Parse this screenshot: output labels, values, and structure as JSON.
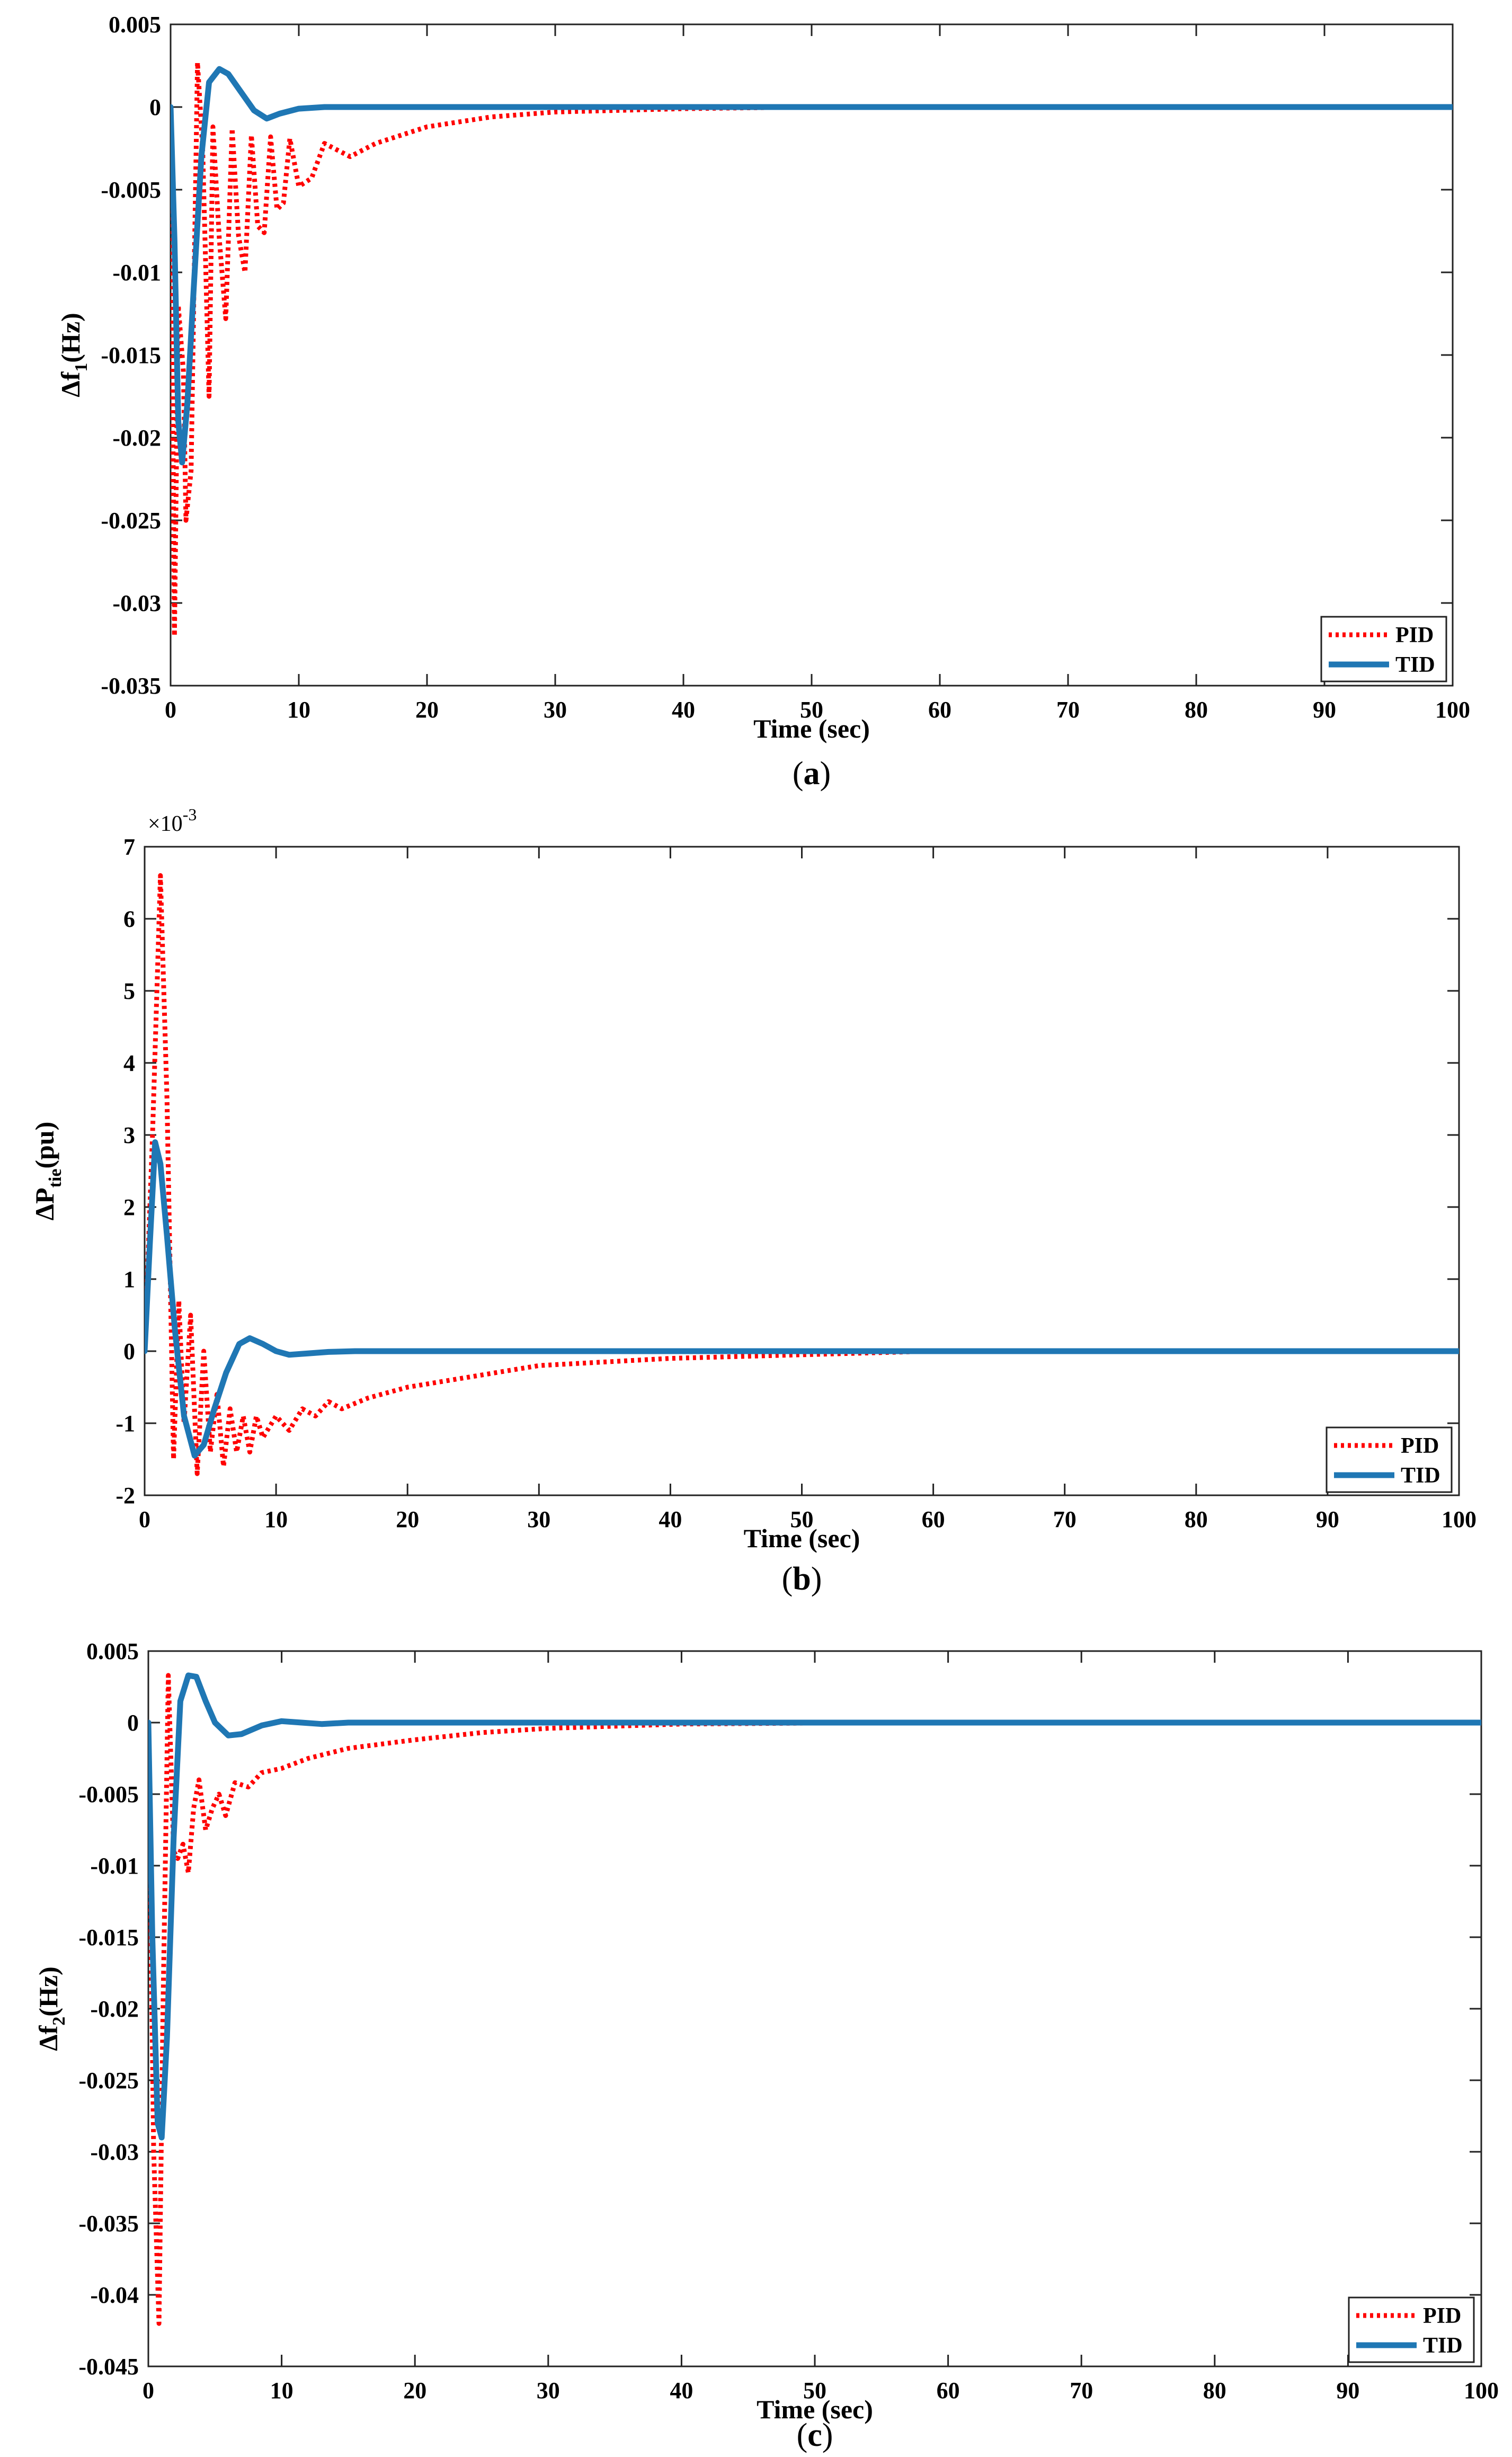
{
  "figure": {
    "captions": [
      "(a)",
      "(b)",
      "(c)"
    ]
  },
  "chart_data": [
    {
      "type": "line",
      "panel": "a",
      "caption": "(a)",
      "xlabel": "Time (sec)",
      "ylabel_main": "Δf",
      "ylabel_sub": "1",
      "ylabel_unit": "(Hz)",
      "xlim": [
        0,
        100
      ],
      "ylim": [
        -0.035,
        0.005
      ],
      "xticks": [
        0,
        10,
        20,
        30,
        40,
        50,
        60,
        70,
        80,
        90,
        100
      ],
      "xtick_labels": [
        "0",
        "10",
        "20",
        "30",
        "40",
        "50",
        "60",
        "70",
        "80",
        "90",
        "100"
      ],
      "yticks": [
        -0.035,
        -0.03,
        -0.025,
        -0.02,
        -0.015,
        -0.01,
        -0.005,
        0,
        0.005
      ],
      "ytick_labels": [
        "-0.035",
        "-0.03",
        "-0.025",
        "-0.02",
        "-0.015",
        "-0.01",
        "-0.005",
        "0",
        "0.005"
      ],
      "legend_position": "bottom-right",
      "series": [
        {
          "name": "PID",
          "color": "#ff0000",
          "style": "dotted",
          "x": [
            0,
            0.3,
            0.6,
            1.0,
            1.2,
            1.6,
            2.1,
            2.5,
            3.0,
            3.3,
            3.8,
            4.3,
            4.8,
            5.3,
            5.8,
            6.3,
            6.8,
            7.3,
            7.8,
            8.3,
            8.8,
            9.3,
            10,
            11,
            12,
            14,
            16,
            18,
            20,
            25,
            30,
            40,
            50,
            70,
            100
          ],
          "y": [
            0,
            -0.032,
            -0.012,
            -0.016,
            -0.025,
            -0.022,
            0.0027,
            -0.0025,
            -0.0175,
            -0.0012,
            -0.008,
            -0.0128,
            -0.0013,
            -0.0078,
            -0.01,
            -0.0017,
            -0.0072,
            -0.0076,
            -0.0018,
            -0.0062,
            -0.0058,
            -0.0019,
            -0.0048,
            -0.0043,
            -0.0022,
            -0.003,
            -0.0022,
            -0.0017,
            -0.0012,
            -0.0006,
            -0.0003,
            -0.0001,
            0,
            0,
            0
          ]
        },
        {
          "name": "TID",
          "color": "#1f77b4",
          "style": "solid",
          "x": [
            0,
            0.3,
            0.6,
            0.9,
            1.3,
            1.8,
            2.4,
            3.0,
            3.8,
            4.5,
            5.5,
            6.5,
            7.5,
            8.5,
            10,
            12,
            14,
            20,
            30,
            50,
            100
          ],
          "y": [
            0,
            -0.008,
            -0.019,
            -0.0215,
            -0.018,
            -0.011,
            -0.003,
            0.0015,
            0.0023,
            0.002,
            0.0009,
            -0.0002,
            -0.0007,
            -0.0004,
            -0.0001,
            0,
            0,
            0,
            0,
            0,
            0
          ]
        }
      ]
    },
    {
      "type": "line",
      "panel": "b",
      "caption": "(b)",
      "xlabel": "Time (sec)",
      "ylabel_main": "ΔP",
      "ylabel_sub": "tie",
      "ylabel_unit": "(pu)",
      "exponent_base": "×10",
      "exponent": "-3",
      "xlim": [
        0,
        100
      ],
      "ylim": [
        -2,
        7
      ],
      "xticks": [
        0,
        10,
        20,
        30,
        40,
        50,
        60,
        70,
        80,
        90,
        100
      ],
      "xtick_labels": [
        "0",
        "10",
        "20",
        "30",
        "40",
        "50",
        "60",
        "70",
        "80",
        "90",
        "100"
      ],
      "yticks": [
        -2,
        -1,
        0,
        1,
        2,
        3,
        4,
        5,
        6,
        7
      ],
      "ytick_labels": [
        "-2",
        "-1",
        "0",
        "1",
        "2",
        "3",
        "4",
        "5",
        "6",
        "7"
      ],
      "legend_position": "bottom-right",
      "series": [
        {
          "name": "PID",
          "color": "#ff0000",
          "style": "dotted",
          "x": [
            0,
            0.6,
            1.2,
            1.7,
            2.2,
            2.6,
            3.0,
            3.5,
            4.0,
            4.5,
            5.0,
            5.5,
            6.0,
            6.5,
            7.0,
            7.5,
            8.0,
            8.5,
            9.0,
            10,
            11,
            12,
            13,
            14,
            15,
            17,
            20,
            25,
            30,
            40,
            50,
            60,
            100
          ],
          "y": [
            0,
            3.0,
            6.6,
            3.5,
            -1.5,
            0.7,
            -1.0,
            0.5,
            -1.7,
            0.0,
            -1.4,
            -0.6,
            -1.6,
            -0.8,
            -1.4,
            -0.9,
            -1.4,
            -0.9,
            -1.2,
            -0.9,
            -1.1,
            -0.8,
            -0.9,
            -0.7,
            -0.8,
            -0.65,
            -0.5,
            -0.35,
            -0.2,
            -0.1,
            -0.05,
            0,
            0
          ]
        },
        {
          "name": "TID",
          "color": "#1f77b4",
          "style": "solid",
          "x": [
            0,
            0.4,
            0.8,
            1.2,
            1.7,
            2.3,
            3.0,
            3.8,
            4.5,
            5.3,
            6.2,
            7.2,
            8.0,
            9.0,
            10.0,
            11.0,
            12.5,
            14,
            16,
            20,
            30,
            50,
            100
          ],
          "y": [
            0,
            1.5,
            2.9,
            2.6,
            1.6,
            0.3,
            -0.9,
            -1.45,
            -1.3,
            -0.8,
            -0.3,
            0.1,
            0.18,
            0.1,
            0.0,
            -0.05,
            -0.03,
            -0.01,
            0,
            0,
            0,
            0,
            0
          ]
        }
      ]
    },
    {
      "type": "line",
      "panel": "c",
      "caption": "(c)",
      "xlabel": "Time (sec)",
      "ylabel_main": "Δf",
      "ylabel_sub": "2",
      "ylabel_unit": "(Hz)",
      "xlim": [
        0,
        100
      ],
      "ylim": [
        -0.045,
        0.005
      ],
      "xticks": [
        0,
        10,
        20,
        30,
        40,
        50,
        60,
        70,
        80,
        90,
        100
      ],
      "xtick_labels": [
        "0",
        "10",
        "20",
        "30",
        "40",
        "50",
        "60",
        "70",
        "80",
        "90",
        "100"
      ],
      "yticks": [
        -0.045,
        -0.04,
        -0.035,
        -0.03,
        -0.025,
        -0.02,
        -0.015,
        -0.01,
        -0.005,
        0,
        0.005
      ],
      "ytick_labels": [
        "-0.045",
        "-0.04",
        "-0.035",
        "-0.03",
        "-0.025",
        "-0.02",
        "-0.015",
        "-0.01",
        "-0.005",
        "0",
        "0.005"
      ],
      "legend_position": "bottom-right",
      "series": [
        {
          "name": "PID",
          "color": "#ff0000",
          "style": "dotted",
          "x": [
            0,
            0.4,
            0.8,
            1.1,
            1.5,
            1.9,
            2.2,
            2.6,
            3.0,
            3.4,
            3.8,
            4.3,
            4.8,
            5.3,
            5.8,
            6.5,
            7.5,
            8.5,
            10,
            12,
            15,
            20,
            25,
            30,
            40,
            55,
            100
          ],
          "y": [
            0,
            -0.03,
            -0.042,
            -0.02,
            0.0033,
            -0.009,
            -0.0095,
            -0.0085,
            -0.0105,
            -0.006,
            -0.004,
            -0.0075,
            -0.006,
            -0.005,
            -0.0065,
            -0.0042,
            -0.0045,
            -0.0035,
            -0.0032,
            -0.0025,
            -0.0018,
            -0.0012,
            -0.0007,
            -0.0004,
            -0.0001,
            0,
            0
          ]
        },
        {
          "name": "TID",
          "color": "#1f77b4",
          "style": "solid",
          "x": [
            0,
            0.3,
            0.7,
            1.0,
            1.4,
            1.9,
            2.4,
            3.0,
            3.6,
            4.3,
            5.0,
            6.0,
            7.0,
            8.5,
            10,
            11.5,
            13,
            15,
            20,
            30,
            50,
            100
          ],
          "y": [
            0,
            -0.015,
            -0.028,
            -0.029,
            -0.022,
            -0.008,
            0.0015,
            0.0033,
            0.0032,
            0.0015,
            0.0,
            -0.0009,
            -0.0008,
            -0.0002,
            0.0001,
            0.0,
            -0.0001,
            0,
            0,
            0,
            0,
            0
          ]
        }
      ]
    }
  ]
}
